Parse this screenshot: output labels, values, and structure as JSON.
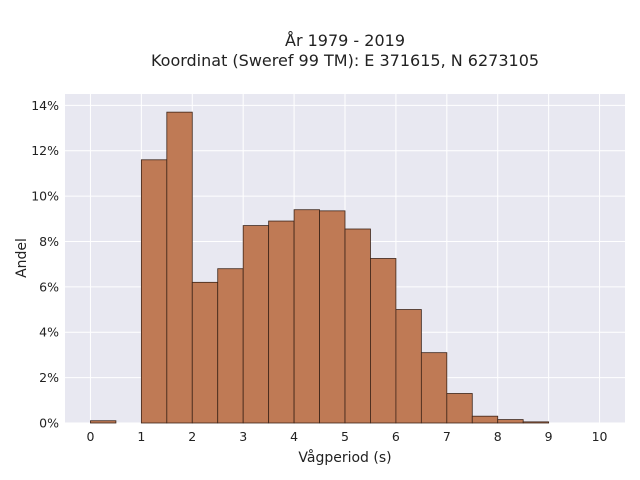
{
  "chart_data": {
    "type": "bar",
    "title": [
      "År 1979 - 2019",
      "Koordinat (Sweref 99 TM): E 371615, N 6273105"
    ],
    "xlabel": "Vågperiod (s)",
    "ylabel": "Andel",
    "xlim": [
      -0.5,
      10.5
    ],
    "ylim": [
      0,
      14.5
    ],
    "x_ticks": [
      0,
      1,
      2,
      3,
      4,
      5,
      6,
      7,
      8,
      9,
      10
    ],
    "y_ticks": [
      0,
      2,
      4,
      6,
      8,
      10,
      12,
      14
    ],
    "y_tick_labels": [
      "0%",
      "2%",
      "4%",
      "6%",
      "8%",
      "10%",
      "12%",
      "14%"
    ],
    "bin_width": 0.5,
    "bins": [
      {
        "start": 0.0,
        "value": 0.1
      },
      {
        "start": 0.5,
        "value": 0.0
      },
      {
        "start": 1.0,
        "value": 11.6
      },
      {
        "start": 1.5,
        "value": 13.7
      },
      {
        "start": 2.0,
        "value": 6.2
      },
      {
        "start": 2.5,
        "value": 6.8
      },
      {
        "start": 3.0,
        "value": 8.7
      },
      {
        "start": 3.5,
        "value": 8.9
      },
      {
        "start": 4.0,
        "value": 9.4
      },
      {
        "start": 4.5,
        "value": 9.35
      },
      {
        "start": 5.0,
        "value": 8.55
      },
      {
        "start": 5.5,
        "value": 7.25
      },
      {
        "start": 6.0,
        "value": 5.0
      },
      {
        "start": 6.5,
        "value": 3.1
      },
      {
        "start": 7.0,
        "value": 1.3
      },
      {
        "start": 7.5,
        "value": 0.3
      },
      {
        "start": 8.0,
        "value": 0.15
      },
      {
        "start": 8.5,
        "value": 0.05
      },
      {
        "start": 9.0,
        "value": 0.0
      },
      {
        "start": 9.5,
        "value": 0.0
      }
    ],
    "grid": true,
    "colors": {
      "bar_fill": "#bf7a55",
      "bar_edge": "#3d2418",
      "plot_background": "#e8e8f1",
      "grid": "#ffffff"
    }
  }
}
